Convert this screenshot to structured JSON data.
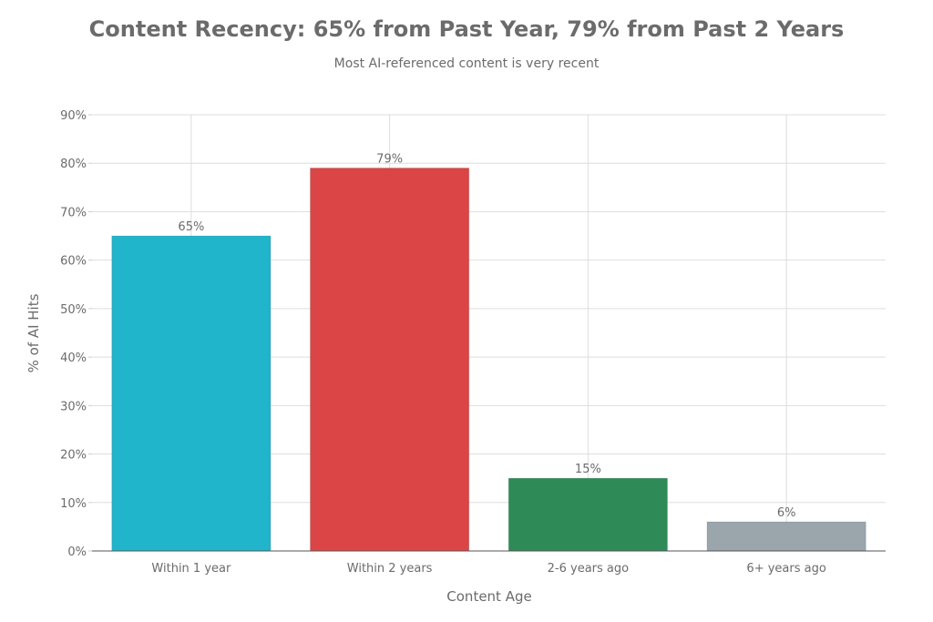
{
  "chart_data": {
    "type": "bar",
    "title": "Content Recency: 65% from Past Year, 79% from Past 2 Years",
    "subtitle": "Most AI-referenced content is very recent",
    "xlabel": "Content Age",
    "ylabel": "% of AI Hits",
    "categories": [
      "Within 1 year",
      "Within 2 years",
      "2-6 years ago",
      "6+ years ago"
    ],
    "values": [
      65,
      79,
      15,
      6
    ],
    "data_labels": [
      "65%",
      "79%",
      "15%",
      "6%"
    ],
    "colors": [
      "#21B5CB",
      "#DB4545",
      "#2E8B57",
      "#9AA5AC"
    ],
    "ylim": [
      0,
      90
    ],
    "yticks": [
      "0%",
      "10%",
      "20%",
      "30%",
      "40%",
      "50%",
      "60%",
      "70%",
      "80%",
      "90%"
    ],
    "grid": true,
    "legend": "none"
  }
}
